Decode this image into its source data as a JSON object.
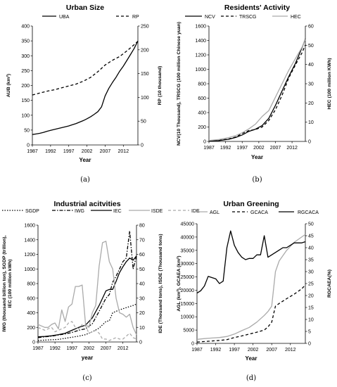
{
  "panels": [
    {
      "id": "a",
      "chart_data": {
        "type": "line",
        "title": "Urban Size",
        "xlabel": "Year",
        "ylabel": "AUB (km²)",
        "y2label": "RP (10 thousand)",
        "xlim": [
          1987,
          2016
        ],
        "ylim": [
          0,
          400
        ],
        "y2lim": [
          0,
          250
        ],
        "xticks": [
          "1987",
          "1992",
          "1997",
          "2002",
          "2007",
          "2012"
        ],
        "yticks": [
          "0",
          "50",
          "100",
          "150",
          "200",
          "250",
          "300",
          "350",
          "400"
        ],
        "y2ticks": [
          "0",
          "50",
          "100",
          "150",
          "200",
          "250"
        ],
        "legend_position": "top",
        "series": [
          {
            "name": "UBA",
            "axis": "left",
            "style": "solid",
            "color": "#000000",
            "x": [
              1987,
              1988,
              1989,
              1990,
              1991,
              1992,
              1993,
              1994,
              1995,
              1996,
              1997,
              1998,
              1999,
              2000,
              2001,
              2002,
              2003,
              2004,
              2005,
              2006,
              2007,
              2008,
              2009,
              2010,
              2011,
              2012,
              2013,
              2014,
              2015,
              2016
            ],
            "y": [
              35,
              37,
              39,
              42,
              46,
              49,
              52,
              55,
              58,
              61,
              64,
              68,
              72,
              77,
              82,
              88,
              95,
              103,
              112,
              128,
              165,
              190,
              210,
              228,
              248,
              265,
              285,
              305,
              325,
              350
            ]
          },
          {
            "name": "RP",
            "axis": "right",
            "style": "dashed",
            "color": "#000000",
            "x": [
              1987,
              1989,
              1991,
              1993,
              1995,
              1997,
              1999,
              2001,
              2003,
              2005,
              2007,
              2009,
              2011,
              2013,
              2015,
              2016
            ],
            "y": [
              105,
              109,
              113,
              116,
              120,
              124,
              128,
              134,
              142,
              154,
              168,
              178,
              186,
              198,
              211,
              218
            ]
          }
        ]
      },
      "caption": "(a)"
    },
    {
      "id": "b",
      "chart_data": {
        "type": "line",
        "title": "Residents' Activity",
        "xlabel": "Year",
        "ylabel": "NCV(10 Thousand), TRSCG (100 million Chinese yuan)",
        "y2label": "HEC (100 million KWh)",
        "xlim": [
          1987,
          2016
        ],
        "ylim": [
          0,
          1600
        ],
        "y2lim": [
          0,
          60
        ],
        "xticks": [
          "1987",
          "1992",
          "1997",
          "2002",
          "2007",
          "2012"
        ],
        "yticks": [
          "0",
          "200",
          "400",
          "600",
          "800",
          "1000",
          "1200",
          "1400",
          "1600"
        ],
        "y2ticks": [
          "0",
          "10",
          "20",
          "30",
          "40",
          "50",
          "60"
        ],
        "legend_position": "top",
        "series": [
          {
            "name": "NCV",
            "axis": "left",
            "style": "solid",
            "color": "#000000",
            "x": [
              1987,
              1990,
              1993,
              1995,
              1997,
              1999,
              2001,
              2003,
              2005,
              2007,
              2009,
              2011,
              2013,
              2015,
              2016
            ],
            "y": [
              5,
              12,
              30,
              55,
              90,
              140,
              170,
              220,
              320,
              500,
              700,
              900,
              1080,
              1300,
              1420
            ]
          },
          {
            "name": "TRSCG",
            "axis": "left",
            "style": "dashed",
            "color": "#000000",
            "x": [
              1987,
              1990,
              1993,
              1995,
              1997,
              1999,
              2001,
              2003,
              2005,
              2007,
              2009,
              2011,
              2013,
              2015,
              2016
            ],
            "y": [
              8,
              15,
              35,
              60,
              110,
              150,
              165,
              200,
              290,
              440,
              640,
              880,
              1060,
              1230,
              1340
            ]
          },
          {
            "name": "HEC",
            "axis": "right",
            "style": "solid",
            "color": "#aaaaaa",
            "x": [
              1987,
              1990,
              1993,
              1995,
              1997,
              1999,
              2001,
              2003,
              2005,
              2007,
              2009,
              2011,
              2013,
              2015,
              2016
            ],
            "y": [
              0.5,
              1,
              2,
              3,
              4.5,
              6.5,
              9,
              13,
              16,
              23,
              30,
              37,
              43,
              49,
              53
            ]
          }
        ]
      },
      "caption": "(b)"
    },
    {
      "id": "c",
      "chart_data": {
        "type": "line",
        "title": "Industrial acitvities",
        "xlabel": "year",
        "ylabel": "IWG (thousand billion ton), SGDP (trillion), IEC (100 million kWh)",
        "y2label": "IDE (Thousand tons), ISDE (Thousand tons)",
        "xlim": [
          1987,
          2016
        ],
        "ylim": [
          0,
          1600
        ],
        "y2lim": [
          0,
          80
        ],
        "xticks": [
          "1987",
          "1992",
          "1997",
          "2002",
          "2007",
          "2012"
        ],
        "yticks": [
          "0",
          "200",
          "400",
          "600",
          "800",
          "1000",
          "1200",
          "1400",
          "1600"
        ],
        "y2ticks": [
          "0",
          "10",
          "20",
          "30",
          "40",
          "50",
          "60",
          "70",
          "80"
        ],
        "legend_position": "top",
        "series": [
          {
            "name": "SGDP",
            "axis": "left",
            "style": "dotted",
            "color": "#000000",
            "x": [
              1987,
              1990,
              1993,
              1995,
              1997,
              1999,
              2001,
              2003,
              2005,
              2007,
              2008,
              2009,
              2011,
              2013,
              2015,
              2016
            ],
            "y": [
              20,
              28,
              35,
              50,
              65,
              80,
              100,
              140,
              190,
              280,
              290,
              400,
              440,
              470,
              500,
              520
            ]
          },
          {
            "name": "IWG",
            "axis": "left",
            "style": "dashdot",
            "color": "#000000",
            "x": [
              1987,
              1989,
              1991,
              1993,
              1995,
              1997,
              1999,
              2001,
              2003,
              2005,
              2007,
              2008,
              2009,
              2010,
              2011,
              2012,
              2013,
              2014,
              2015,
              2016
            ],
            "y": [
              60,
              70,
              80,
              95,
              110,
              130,
              160,
              180,
              250,
              420,
              600,
              650,
              820,
              900,
              1000,
              1100,
              1150,
              1520,
              1000,
              1180
            ]
          },
          {
            "name": "IEC",
            "axis": "left",
            "style": "solid",
            "color": "#000000",
            "x": [
              1987,
              1989,
              1991,
              1993,
              1995,
              1997,
              1999,
              2001,
              2003,
              2005,
              2007,
              2008,
              2009,
              2010,
              2011,
              2012,
              2013,
              2014,
              2015,
              2016
            ],
            "y": [
              70,
              75,
              85,
              100,
              120,
              160,
              200,
              230,
              330,
              500,
              700,
              720,
              720,
              830,
              950,
              1030,
              1100,
              1150,
              1120,
              1180
            ]
          },
          {
            "name": "ISDE",
            "axis": "right",
            "style": "solid",
            "color": "#aaaaaa",
            "x": [
              1987,
              1988,
              1989,
              1990,
              1991,
              1992,
              1993,
              1994,
              1995,
              1996,
              1997,
              1998,
              1999,
              2000,
              2001,
              2002,
              2003,
              2004,
              2005,
              2006,
              2007,
              2008,
              2009,
              2010,
              2011,
              2012,
              2013,
              2014,
              2015,
              2016
            ],
            "y": [
              12,
              11,
              10,
              10,
              12,
              13,
              9,
              22,
              14,
              24,
              26,
              38,
              38,
              39,
              12,
              10,
              20,
              25,
              52,
              68,
              69,
              55,
              50,
              30,
              20,
              19,
              17,
              19,
              10,
              5
            ]
          },
          {
            "name": "IDE",
            "axis": "right",
            "style": "dashed",
            "color": "#aaaaaa",
            "x": [
              1987,
              1988,
              1989,
              1990,
              1991,
              1992,
              1993,
              1994,
              1995,
              1996,
              1997,
              1998,
              1999,
              2000,
              2001,
              2002,
              2003,
              2004,
              2005,
              2006,
              2007,
              2008,
              2009,
              2010,
              2011,
              2012,
              2013,
              2014,
              2015,
              2016
            ],
            "y": [
              10,
              9,
              8,
              9,
              10,
              7,
              8,
              9,
              10,
              13,
              14,
              10,
              9,
              12,
              11,
              6,
              7,
              8,
              6,
              2,
              2,
              1,
              2,
              3,
              2,
              2,
              4,
              6,
              3,
              2
            ]
          }
        ]
      },
      "caption": "(c)"
    },
    {
      "id": "d",
      "chart_data": {
        "type": "line",
        "title": "Urban Greening",
        "xlabel": "Year",
        "ylabel": "AGL (km²), GCAEA (km²)",
        "y2label": "RGCAEA(%)",
        "xlim": [
          1987,
          2016
        ],
        "ylim": [
          0,
          45000
        ],
        "y2lim": [
          0,
          50
        ],
        "xticks": [
          "1987",
          "1992",
          "1997",
          "2002",
          "2007",
          "2012"
        ],
        "yticks": [
          "0",
          "5000",
          "10000",
          "15000",
          "20000",
          "25000",
          "30000",
          "35000",
          "40000",
          "45000"
        ],
        "y2ticks": [
          "0",
          "5",
          "10",
          "15",
          "20",
          "25",
          "30",
          "35",
          "40",
          "45",
          "50"
        ],
        "legend_position": "top",
        "series": [
          {
            "name": "AGL",
            "axis": "left",
            "style": "solid",
            "color": "#aaaaaa",
            "x": [
              1987,
              1989,
              1991,
              1993,
              1995,
              1997,
              1999,
              2001,
              2003,
              2005,
              2006,
              2007,
              2008,
              2009,
              2011,
              2013,
              2015,
              2016
            ],
            "y": [
              1500,
              1800,
              2000,
              2200,
              2600,
              3500,
              4800,
              6000,
              8000,
              10500,
              12000,
              14000,
              27000,
              31000,
              35000,
              38000,
              40000,
              41000
            ]
          },
          {
            "name": "GCACA",
            "axis": "left",
            "style": "dashed",
            "color": "#000000",
            "x": [
              1987,
              1989,
              1991,
              1993,
              1995,
              1997,
              1999,
              2001,
              2003,
              2005,
              2006,
              2007,
              2008,
              2009,
              2011,
              2013,
              2015,
              2016
            ],
            "y": [
              500,
              700,
              900,
              1100,
              1400,
              2200,
              2800,
              3500,
              4200,
              5000,
              6200,
              8000,
              14000,
              15000,
              16800,
              18500,
              20500,
              22000
            ]
          },
          {
            "name": "RGCACA",
            "axis": "right",
            "style": "solid",
            "color": "#000000",
            "x": [
              1987,
              1988,
              1989,
              1990,
              1991,
              1992,
              1993,
              1994,
              1995,
              1996,
              1997,
              1998,
              1999,
              2000,
              2001,
              2002,
              2003,
              2004,
              2005,
              2006,
              2007,
              2008,
              2009,
              2010,
              2011,
              2012,
              2013,
              2014,
              2015,
              2016
            ],
            "y": [
              21,
              22,
              24,
              28,
              27.5,
              27,
              25,
              26,
              40,
              47,
              41,
              38,
              36,
              35,
              35.5,
              35.5,
              37,
              37,
              45,
              36,
              37,
              38,
              39,
              40,
              40,
              41,
              42,
              42,
              42,
              42.5
            ]
          }
        ]
      },
      "caption": "(d)"
    }
  ]
}
